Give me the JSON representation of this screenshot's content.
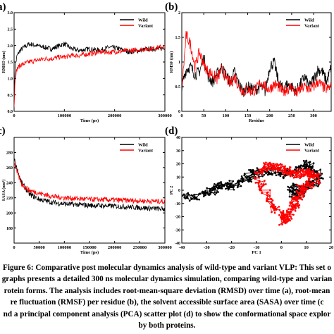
{
  "colors": {
    "wild": "#000000",
    "variant": "#ff0000",
    "background": "#ffffff"
  },
  "chart_data": [
    {
      "panel_label": "a)",
      "type": "line",
      "ylabel": "RMSD (nm)",
      "xlabel": "Time (ps)",
      "xlim": [
        0,
        300000
      ],
      "ylim": [
        0,
        3.0
      ],
      "xticks": [
        {
          "value": 0,
          "label": "0"
        },
        {
          "value": 100000,
          "label": "100000"
        },
        {
          "value": 200000,
          "label": "200000"
        },
        {
          "value": 300000,
          "label": "300000"
        }
      ],
      "yticks": [
        {
          "value": 0,
          "label": "0.0"
        },
        {
          "value": 0.5,
          "label": "0.5"
        },
        {
          "value": 1.0,
          "label": "1.0"
        },
        {
          "value": 1.5,
          "label": "1.5"
        },
        {
          "value": 2.0,
          "label": "2.0"
        },
        {
          "value": 2.5,
          "label": "2.5"
        },
        {
          "value": 3.0,
          "label": "3.0"
        }
      ],
      "legend": "top-right",
      "series": [
        {
          "name": "Wild",
          "color": "#000000",
          "x": [
            0,
            2000,
            6000,
            12000,
            20000,
            30000,
            45000,
            60000,
            75000,
            90000,
            100000,
            115000,
            130000,
            150000,
            170000,
            190000,
            210000,
            230000,
            250000,
            270000,
            290000,
            300000
          ],
          "y": [
            0.15,
            1.35,
            1.7,
            1.85,
            1.95,
            2.05,
            2.0,
            1.95,
            1.9,
            2.0,
            2.05,
            1.9,
            1.85,
            1.9,
            1.85,
            1.95,
            1.9,
            1.8,
            1.85,
            1.9,
            1.9,
            1.95
          ]
        },
        {
          "name": "Variant",
          "color": "#ff0000",
          "x": [
            0,
            2000,
            6000,
            12000,
            20000,
            30000,
            45000,
            60000,
            75000,
            90000,
            100000,
            115000,
            130000,
            150000,
            170000,
            190000,
            210000,
            230000,
            250000,
            270000,
            290000,
            300000
          ],
          "y": [
            0.15,
            1.0,
            1.3,
            1.4,
            1.45,
            1.5,
            1.55,
            1.6,
            1.6,
            1.65,
            1.65,
            1.7,
            1.7,
            1.75,
            1.8,
            1.8,
            1.82,
            1.85,
            1.88,
            1.9,
            1.95,
            1.95
          ]
        }
      ]
    },
    {
      "panel_label": "(b)",
      "type": "line",
      "ylabel": "RMSF (nm)",
      "xlabel": "Residue",
      "xlim": [
        0,
        340
      ],
      "ylim": [
        0,
        2.0
      ],
      "xticks": [
        {
          "value": 0,
          "label": "0"
        },
        {
          "value": 50,
          "label": "50"
        },
        {
          "value": 100,
          "label": "100"
        },
        {
          "value": 150,
          "label": "150"
        },
        {
          "value": 200,
          "label": "200"
        },
        {
          "value": 250,
          "label": "250"
        },
        {
          "value": 300,
          "label": "300"
        }
      ],
      "yticks": [
        {
          "value": 0,
          "label": "0"
        },
        {
          "value": 0.5,
          "label": "0.5"
        },
        {
          "value": 1.0,
          "label": "1"
        },
        {
          "value": 1.5,
          "label": "1.5"
        },
        {
          "value": 2.0,
          "label": "2"
        }
      ],
      "legend": "top-right",
      "series": [
        {
          "name": "Wild",
          "color": "#000000",
          "x": [
            0,
            10,
            20,
            30,
            40,
            50,
            60,
            70,
            80,
            90,
            100,
            110,
            120,
            130,
            140,
            150,
            160,
            170,
            180,
            190,
            200,
            210,
            220,
            230,
            240,
            250,
            260,
            270,
            280,
            290,
            300,
            310,
            320,
            330,
            340
          ],
          "y": [
            0.5,
            0.85,
            0.9,
            0.75,
            0.8,
            1.1,
            0.7,
            0.6,
            0.75,
            0.9,
            0.75,
            0.6,
            0.8,
            0.55,
            0.4,
            0.5,
            0.45,
            0.45,
            0.5,
            0.4,
            0.9,
            1.0,
            0.6,
            0.45,
            0.55,
            0.5,
            0.4,
            0.55,
            0.7,
            0.5,
            0.65,
            0.85,
            0.8,
            0.6,
            0.9
          ]
        },
        {
          "name": "Variant",
          "color": "#ff0000",
          "x": [
            0,
            10,
            20,
            30,
            40,
            50,
            60,
            70,
            80,
            90,
            100,
            110,
            120,
            130,
            140,
            150,
            160,
            170,
            180,
            190,
            200,
            210,
            220,
            230,
            240,
            250,
            260,
            270,
            280,
            290,
            300,
            310,
            320,
            330,
            340
          ],
          "y": [
            0.45,
            1.55,
            1.35,
            0.9,
            1.2,
            0.95,
            0.8,
            0.75,
            0.65,
            0.85,
            0.7,
            0.55,
            0.7,
            0.5,
            0.4,
            0.45,
            0.4,
            0.45,
            0.6,
            0.5,
            0.45,
            0.55,
            0.5,
            0.4,
            0.45,
            0.5,
            0.35,
            0.45,
            0.5,
            0.45,
            0.5,
            0.6,
            0.5,
            0.45,
            0.5
          ]
        }
      ]
    },
    {
      "panel_label": "c)",
      "type": "line",
      "ylabel": "SASA (nm²)",
      "xlabel": "Time (ps)",
      "xlim": [
        0,
        300000
      ],
      "ylim": [
        160,
        300
      ],
      "xticks": [
        {
          "value": 0,
          "label": "0"
        },
        {
          "value": 50000,
          "label": "50000"
        },
        {
          "value": 100000,
          "label": "100000"
        },
        {
          "value": 150000,
          "label": "150000"
        },
        {
          "value": 200000,
          "label": "200000"
        },
        {
          "value": 250000,
          "label": "250000"
        },
        {
          "value": 300000,
          "label": "300000"
        }
      ],
      "yticks": [
        {
          "value": 180,
          "label": "180"
        },
        {
          "value": 200,
          "label": "200"
        },
        {
          "value": 220,
          "label": "220"
        },
        {
          "value": 240,
          "label": "240"
        },
        {
          "value": 260,
          "label": "260"
        },
        {
          "value": 280,
          "label": "280"
        }
      ],
      "legend": "top-right",
      "series": [
        {
          "name": "Wild",
          "color": "#000000",
          "x": [
            0,
            5000,
            15000,
            30000,
            50000,
            75000,
            100000,
            150000,
            200000,
            250000,
            300000
          ],
          "y": [
            272,
            260,
            240,
            225,
            218,
            214,
            212,
            210,
            209,
            207,
            205
          ]
        },
        {
          "name": "Variant",
          "color": "#ff0000",
          "x": [
            0,
            5000,
            15000,
            30000,
            50000,
            75000,
            100000,
            150000,
            200000,
            250000,
            300000
          ],
          "y": [
            268,
            255,
            238,
            230,
            226,
            222,
            220,
            218,
            217,
            216,
            215
          ]
        }
      ]
    },
    {
      "panel_label": "(d)",
      "type": "scatter",
      "xlabel": "PC 1",
      "ylabel": "PC 2",
      "xlim": [
        -40,
        20
      ],
      "ylim": [
        -40,
        40
      ],
      "xticks": [
        {
          "value": -40,
          "label": "-40"
        },
        {
          "value": -30,
          "label": "-30"
        },
        {
          "value": -20,
          "label": "-20"
        },
        {
          "value": -10,
          "label": "-10"
        },
        {
          "value": 0,
          "label": "0"
        },
        {
          "value": 10,
          "label": "10"
        },
        {
          "value": 20,
          "label": "20"
        }
      ],
      "yticks": [
        {
          "value": -40,
          "label": "-40"
        },
        {
          "value": -30,
          "label": "-30"
        },
        {
          "value": -20,
          "label": "-20"
        },
        {
          "value": -10,
          "label": "-10"
        },
        {
          "value": 0,
          "label": "0"
        },
        {
          "value": 10,
          "label": "10"
        },
        {
          "value": 20,
          "label": "20"
        },
        {
          "value": 30,
          "label": "30"
        },
        {
          "value": 40,
          "label": "40"
        }
      ],
      "legend": "top-right",
      "series": [
        {
          "name": "Wild",
          "color": "#000000",
          "x": [
            -38,
            -35,
            -32,
            -29,
            -27,
            -25,
            -22,
            -20,
            -17,
            -14,
            -12,
            -10,
            -7,
            -4,
            -1,
            2,
            5,
            8,
            10,
            12,
            14,
            15,
            13,
            11,
            9,
            7,
            5,
            4,
            6
          ],
          "y": [
            -4,
            -6,
            -2,
            -1,
            1,
            4,
            5,
            3,
            6,
            9,
            12,
            14,
            13,
            15,
            14,
            12,
            15,
            17,
            20,
            18,
            14,
            9,
            6,
            3,
            0,
            -2,
            -3,
            0,
            3
          ]
        },
        {
          "name": "Variant",
          "color": "#ff0000",
          "x": [
            -9,
            -7,
            -5,
            -3,
            -1,
            1,
            3,
            5,
            7,
            9,
            11,
            13,
            14,
            12,
            10,
            8,
            7,
            6,
            5,
            4,
            3,
            2,
            1,
            0,
            -2,
            -4,
            -6,
            -8,
            -9
          ],
          "y": [
            14,
            17,
            19,
            18,
            16,
            15,
            14,
            12,
            12,
            14,
            13,
            12,
            9,
            5,
            3,
            1,
            -3,
            -7,
            -11,
            -14,
            -17,
            -22,
            -24,
            -20,
            -15,
            -10,
            -3,
            4,
            10
          ]
        }
      ]
    }
  ],
  "caption": [
    "Figure 6: Comparative post molecular dynamics analysis of wild-type and variant VLP: This set o",
    "graphs presents a detailed 300 ns molecular dynamics simulation, comparing wild-type and varian",
    "rotein forms. The analysis includes root-mean-square deviation (RMSD) over time (a), root-mean",
    "re fluctuation (RMSF) per residue (b), the solvent accessible surface area (SASA) over time (c",
    "nd a principal component analysis (PCA) scatter plot (d) to show the conformational space explor",
    "by both proteins."
  ]
}
